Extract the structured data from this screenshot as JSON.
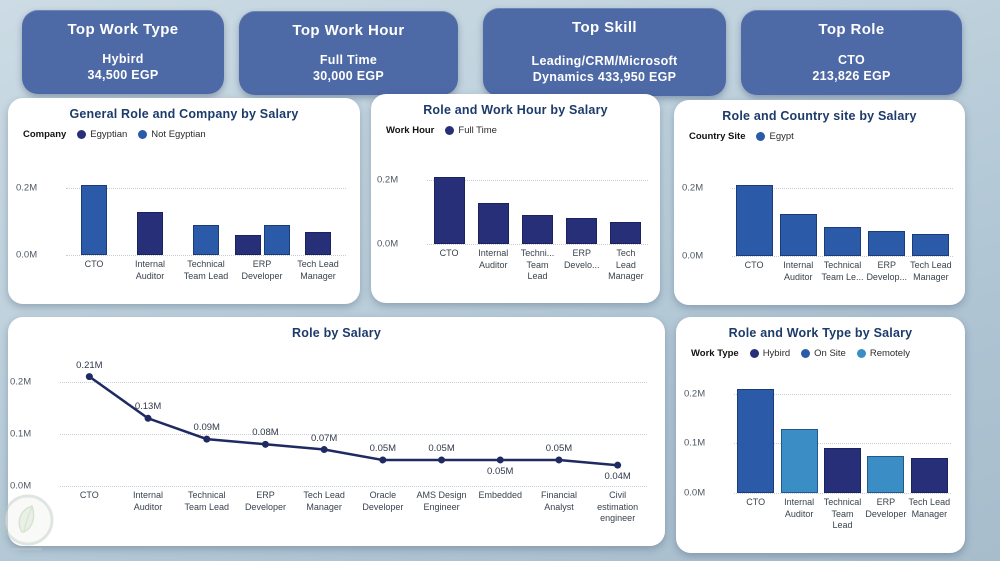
{
  "colors": {
    "kpi_card": "#4d69a6",
    "title_navy": "#1c3b6b",
    "series_navy": "#272f79",
    "series_blue": "#2a5aa8",
    "series_light_blue": "#3b8dc6",
    "line": "#1f2a63"
  },
  "kpi_cards": [
    {
      "title": "Top Work Type",
      "line1": "Hybird",
      "line2": "34,500 EGP"
    },
    {
      "title": "Top Work Hour",
      "line1": "Full Time",
      "line2": "30,000 EGP"
    },
    {
      "title": "Top Skill",
      "line1": "Leading/CRM/Microsoft",
      "line2": "Dynamics 433,950 EGP"
    },
    {
      "title": "Top Role",
      "line1": "CTO",
      "line2": "213,826 EGP"
    }
  ],
  "watermark_icon": "leaf-logo",
  "chart_data": [
    {
      "type": "bar",
      "title": "General Role and Company by Salary",
      "legend_title": "Company",
      "legend_position": "top-left",
      "grid": true,
      "ymax": 0.26,
      "y_ticks": [
        {
          "label": "0.2M",
          "value": 0.2
        },
        {
          "label": "0.0M",
          "value": 0.0
        }
      ],
      "series": [
        {
          "name": "Egyptian",
          "color": "#272f79"
        },
        {
          "name": "Not Egyptian",
          "color": "#2a5aa8"
        }
      ],
      "groups": [
        {
          "label": "CTO",
          "bars": [
            {
              "series": "Not Egyptian",
              "value": 0.21
            }
          ]
        },
        {
          "label": "Internal\nAuditor",
          "bars": [
            {
              "series": "Egyptian",
              "value": 0.13
            }
          ]
        },
        {
          "label": "Technical\nTeam Lead",
          "bars": [
            {
              "series": "Not Egyptian",
              "value": 0.09
            }
          ]
        },
        {
          "label": "ERP\nDeveloper",
          "bars": [
            {
              "series": "Egyptian",
              "value": 0.06
            },
            {
              "series": "Not Egyptian",
              "value": 0.09
            }
          ]
        },
        {
          "label": "Tech Lead\nManager",
          "bars": [
            {
              "series": "Egyptian",
              "value": 0.07
            }
          ]
        }
      ]
    },
    {
      "type": "bar",
      "title": "Role and Work Hour by Salary",
      "legend_title": "Work Hour",
      "legend_position": "top-left",
      "grid": true,
      "ymax": 0.26,
      "y_ticks": [
        {
          "label": "0.2M",
          "value": 0.2
        },
        {
          "label": "0.0M",
          "value": 0.0
        }
      ],
      "series": [
        {
          "name": "Full Time",
          "color": "#272f79"
        }
      ],
      "groups": [
        {
          "label": "CTO",
          "bars": [
            {
              "series": "Full Time",
              "value": 0.21
            }
          ]
        },
        {
          "label": "Internal\nAuditor",
          "bars": [
            {
              "series": "Full Time",
              "value": 0.13
            }
          ]
        },
        {
          "label": "Techni...\nTeam\nLead",
          "bars": [
            {
              "series": "Full Time",
              "value": 0.09
            }
          ]
        },
        {
          "label": "ERP\nDevelo...",
          "bars": [
            {
              "series": "Full Time",
              "value": 0.08
            }
          ]
        },
        {
          "label": "Tech\nLead\nManager",
          "bars": [
            {
              "series": "Full Time",
              "value": 0.07
            }
          ]
        }
      ]
    },
    {
      "type": "bar",
      "title": "Role and Country site by Salary",
      "legend_title": "Country Site",
      "legend_position": "top-left",
      "grid": true,
      "ymax": 0.26,
      "y_ticks": [
        {
          "label": "0.2M",
          "value": 0.2
        },
        {
          "label": "0.0M",
          "value": 0.0
        }
      ],
      "series": [
        {
          "name": "Egypt",
          "color": "#2a5aa8"
        }
      ],
      "groups": [
        {
          "label": "CTO",
          "bars": [
            {
              "series": "Egypt",
              "value": 0.21
            }
          ]
        },
        {
          "label": "Internal\nAuditor",
          "bars": [
            {
              "series": "Egypt",
              "value": 0.125
            }
          ]
        },
        {
          "label": "Technical\nTeam Le...",
          "bars": [
            {
              "series": "Egypt",
              "value": 0.085
            }
          ]
        },
        {
          "label": "ERP\nDevelop...",
          "bars": [
            {
              "series": "Egypt",
              "value": 0.075
            }
          ]
        },
        {
          "label": "Tech Lead\nManager",
          "bars": [
            {
              "series": "Egypt",
              "value": 0.065
            }
          ]
        }
      ]
    },
    {
      "type": "line",
      "title": "Role by Salary",
      "color": "#1f2a63",
      "grid": true,
      "ymax": 0.24,
      "y_ticks": [
        {
          "label": "0.2M",
          "value": 0.2
        },
        {
          "label": "0.1M",
          "value": 0.1
        },
        {
          "label": "0.0M",
          "value": 0.0
        }
      ],
      "points": [
        {
          "label": "CTO",
          "value": 0.21,
          "data_label": "0.21M",
          "label_side": "above"
        },
        {
          "label": "Internal\nAuditor",
          "value": 0.13,
          "data_label": "0.13M",
          "label_side": "above"
        },
        {
          "label": "Technical\nTeam Lead",
          "value": 0.09,
          "data_label": "0.09M",
          "label_side": "above"
        },
        {
          "label": "ERP\nDeveloper",
          "value": 0.08,
          "data_label": "0.08M",
          "label_side": "above"
        },
        {
          "label": "Tech Lead\nManager",
          "value": 0.07,
          "data_label": "0.07M",
          "label_side": "above"
        },
        {
          "label": "Oracle\nDeveloper",
          "value": 0.05,
          "data_label": "0.05M",
          "label_side": "above"
        },
        {
          "label": "AMS Design\nEngineer",
          "value": 0.05,
          "data_label": "0.05M",
          "label_side": "above"
        },
        {
          "label": "Embedded",
          "value": 0.05,
          "data_label": "0.05M",
          "label_side": "below"
        },
        {
          "label": "Financial\nAnalyst",
          "value": 0.05,
          "data_label": "0.05M",
          "label_side": "above"
        },
        {
          "label": "Civil\nestimation\nengineer",
          "value": 0.04,
          "data_label": "0.04M",
          "label_side": "below"
        }
      ]
    },
    {
      "type": "bar",
      "title": "Role and Work Type by Salary",
      "legend_title": "Work Type",
      "legend_position": "top-left",
      "grid": true,
      "ymax": 0.24,
      "y_ticks": [
        {
          "label": "0.2M",
          "value": 0.2
        },
        {
          "label": "0.1M",
          "value": 0.1
        },
        {
          "label": "0.0M",
          "value": 0.0
        }
      ],
      "series": [
        {
          "name": "Hybird",
          "color": "#272f79"
        },
        {
          "name": "On Site",
          "color": "#2a5aa8"
        },
        {
          "name": "Remotely",
          "color": "#3b8dc6"
        }
      ],
      "groups": [
        {
          "label": "CTO",
          "bars": [
            {
              "series": "On Site",
              "value": 0.21
            }
          ]
        },
        {
          "label": "Internal\nAuditor",
          "bars": [
            {
              "series": "Remotely",
              "value": 0.13
            }
          ]
        },
        {
          "label": "Technical\nTeam\nLead",
          "bars": [
            {
              "series": "Hybird",
              "value": 0.09
            }
          ]
        },
        {
          "label": "ERP\nDeveloper",
          "bars": [
            {
              "series": "Remotely",
              "value": 0.075
            }
          ]
        },
        {
          "label": "Tech Lead\nManager",
          "bars": [
            {
              "series": "Hybird",
              "value": 0.07
            }
          ]
        }
      ]
    }
  ]
}
